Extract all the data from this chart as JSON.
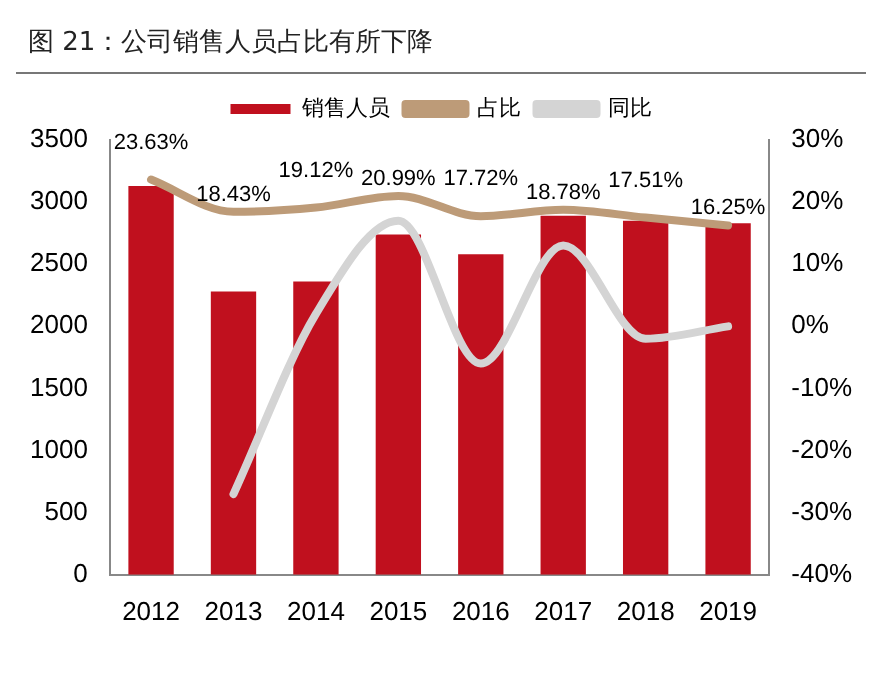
{
  "chart_data": {
    "type": "bar",
    "title": "图 21：公司销售人员占比有所下降",
    "categories": [
      "2012",
      "2013",
      "2014",
      "2015",
      "2016",
      "2017",
      "2018",
      "2019"
    ],
    "series": [
      {
        "name": "销售人员",
        "color": "#c0101e",
        "values": [
          3130,
          2280,
          2360,
          2740,
          2580,
          2890,
          2850,
          2830
        ]
      },
      {
        "name": "占比",
        "type": "line",
        "axis": "y2",
        "color": "#bd9b78",
        "values": [
          23.63,
          18.43,
          19.12,
          20.99,
          17.72,
          18.78,
          17.51,
          16.25
        ],
        "value_labels": [
          "23.63%",
          "18.43%",
          "19.12%",
          "20.99%",
          "17.72%",
          "18.78%",
          "17.51%",
          "16.25%"
        ]
      },
      {
        "name": "同比",
        "type": "line",
        "axis": "y2",
        "color": "#d4d4d4",
        "values": [
          null,
          -27,
          2,
          17,
          -6,
          13,
          -2,
          0
        ]
      }
    ],
    "ylim": [
      0,
      3500
    ],
    "yticks": [
      0,
      500,
      1000,
      1500,
      2000,
      2500,
      3000,
      3500
    ],
    "y2lim": [
      -40,
      30
    ],
    "y2ticks": [
      {
        "value": -40,
        "label": "-40%"
      },
      {
        "value": -30,
        "label": "-30%"
      },
      {
        "value": -20,
        "label": "-20%"
      },
      {
        "value": -10,
        "label": "-10%"
      },
      {
        "value": 0,
        "label": "0%"
      },
      {
        "value": 10,
        "label": "10%"
      },
      {
        "value": 20,
        "label": "20%"
      },
      {
        "value": 30,
        "label": "30%"
      }
    ],
    "grid": false,
    "legend": "top",
    "marker": "none"
  }
}
